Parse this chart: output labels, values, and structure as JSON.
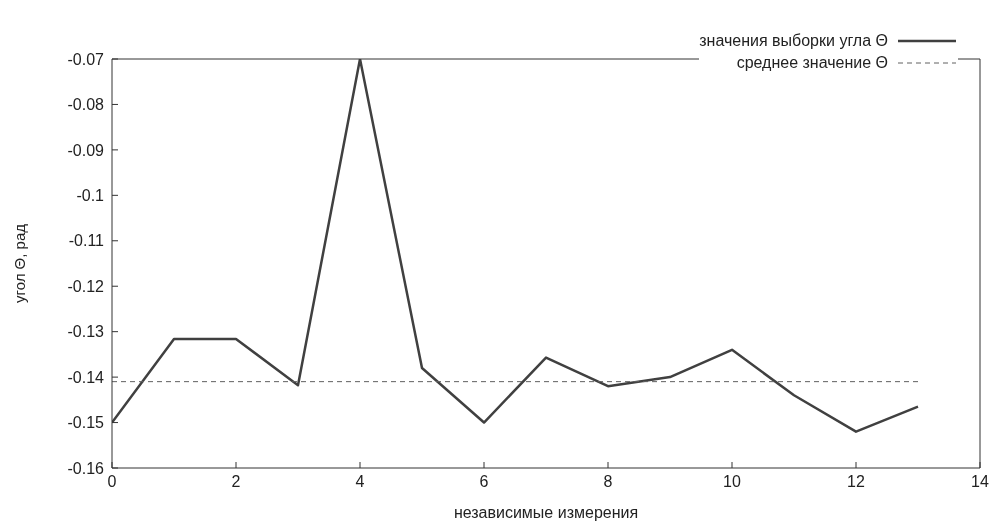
{
  "chart_data": {
    "type": "line",
    "xlabel": "независимые измерения",
    "ylabel": "угол Θ, рад",
    "xlim": [
      0,
      14
    ],
    "xticks": [
      0,
      2,
      4,
      6,
      8,
      10,
      12,
      14
    ],
    "ylim": [
      -0.16,
      -0.07
    ],
    "yticks": [
      -0.16,
      -0.15,
      -0.14,
      -0.13,
      -0.12,
      -0.11,
      -0.1,
      -0.09,
      -0.08,
      -0.07
    ],
    "legend": "top right",
    "marker": "none",
    "series": [
      {
        "name": "значения выборки угла Θ",
        "color": "#404040",
        "line_style": "solid",
        "x": [
          0,
          1,
          2,
          3,
          4,
          5,
          6,
          7,
          8,
          9,
          10,
          11,
          12,
          13
        ],
        "values": [
          -0.15,
          -0.1316,
          -0.1316,
          -0.1418,
          -0.07,
          -0.138,
          -0.15,
          -0.1357,
          -0.142,
          -0.14,
          -0.134,
          -0.144,
          -0.152,
          -0.1465
        ]
      },
      {
        "name": "среднее значение Θ",
        "color": "#606060",
        "line_style": "dashed",
        "x": [
          0,
          13
        ],
        "values": [
          -0.141,
          -0.141
        ]
      }
    ]
  }
}
